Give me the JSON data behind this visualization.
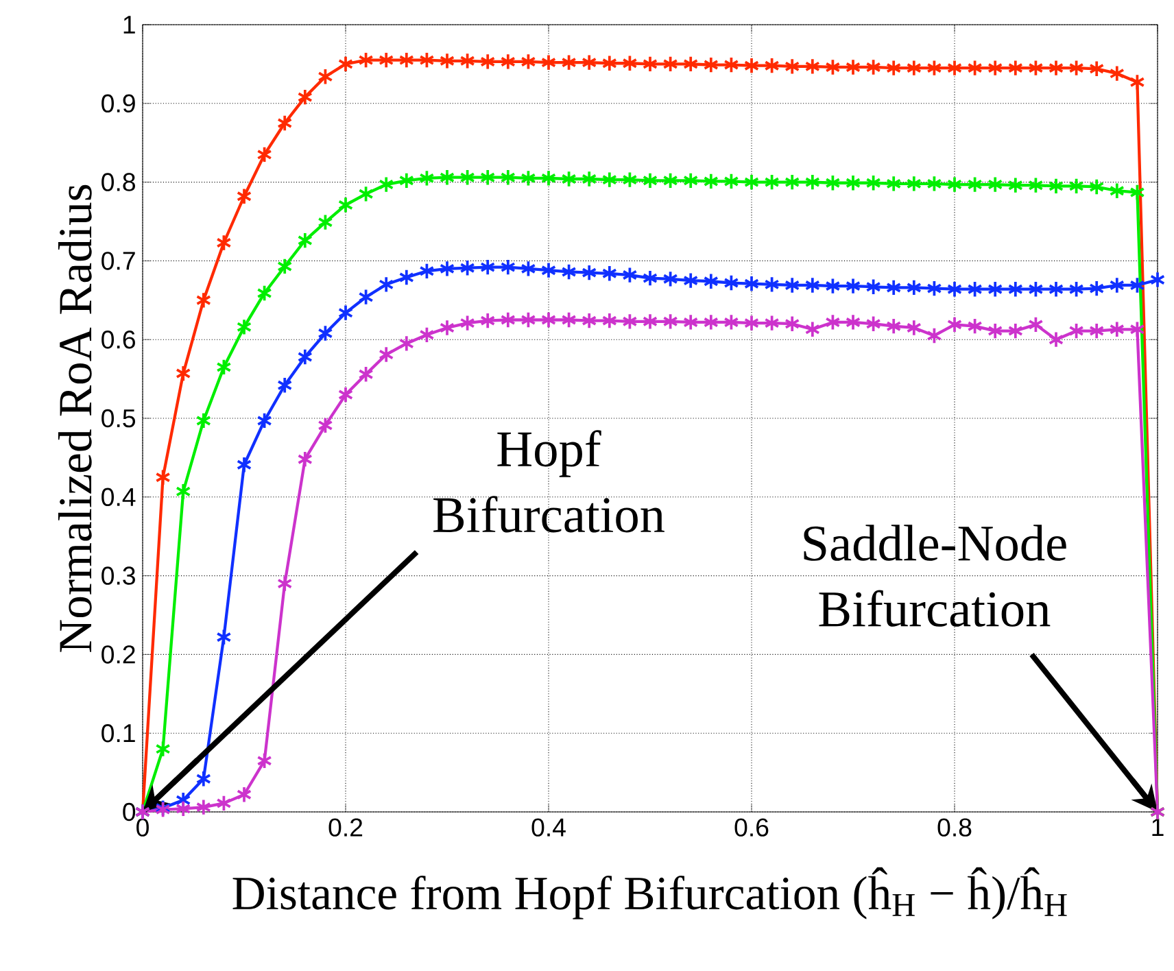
{
  "chart_data": {
    "type": "line",
    "xlabel": "Distance from Hopf Bifurcation (ĥ$_{H}$ − ĥ)/ĥ$_{H}$",
    "ylabel": "Normalized RoA Radius",
    "annotations": [
      {
        "text": "Hopf Bifurcation",
        "x": 0,
        "y": 0
      },
      {
        "text": "Saddle-Node Bifurcation",
        "x": 1,
        "y": 0
      }
    ],
    "x": [
      0,
      0.02,
      0.04,
      0.06,
      0.08,
      0.1,
      0.12,
      0.14,
      0.16,
      0.18,
      0.2,
      0.22,
      0.24,
      0.26,
      0.28,
      0.3,
      0.32,
      0.34,
      0.36,
      0.38,
      0.4,
      0.42,
      0.44,
      0.46,
      0.48,
      0.5,
      0.52,
      0.54,
      0.56,
      0.58,
      0.6,
      0.62,
      0.64,
      0.66,
      0.68,
      0.7,
      0.72,
      0.74,
      0.76,
      0.78,
      0.8,
      0.82,
      0.84,
      0.86,
      0.88,
      0.9,
      0.92,
      0.94,
      0.96,
      0.98,
      1
    ],
    "series": [
      {
        "color": "#ff2a00",
        "values": [
          0,
          0.425,
          0.557,
          0.65,
          0.723,
          0.782,
          0.835,
          0.875,
          0.908,
          0.934,
          0.95,
          0.955,
          0.955,
          0.955,
          0.955,
          0.954,
          0.954,
          0.953,
          0.953,
          0.953,
          0.952,
          0.952,
          0.952,
          0.951,
          0.951,
          0.95,
          0.95,
          0.95,
          0.949,
          0.949,
          0.948,
          0.948,
          0.947,
          0.947,
          0.946,
          0.946,
          0.946,
          0.945,
          0.945,
          0.945,
          0.945,
          0.945,
          0.945,
          0.945,
          0.945,
          0.945,
          0.945,
          0.944,
          0.938,
          0.927,
          0
        ]
      },
      {
        "color": "#00ee00",
        "values": [
          0,
          0.08,
          0.407,
          0.497,
          0.565,
          0.616,
          0.659,
          0.693,
          0.726,
          0.749,
          0.771,
          0.785,
          0.797,
          0.802,
          0.805,
          0.806,
          0.806,
          0.806,
          0.806,
          0.805,
          0.805,
          0.804,
          0.804,
          0.803,
          0.803,
          0.802,
          0.802,
          0.802,
          0.801,
          0.801,
          0.8,
          0.8,
          0.8,
          0.8,
          0.799,
          0.799,
          0.799,
          0.798,
          0.798,
          0.798,
          0.797,
          0.797,
          0.797,
          0.796,
          0.796,
          0.795,
          0.795,
          0.794,
          0.789,
          0.787,
          0
        ]
      },
      {
        "color": "#1030ff",
        "values": [
          0,
          0.005,
          0.015,
          0.042,
          0.222,
          0.441,
          0.497,
          0.542,
          0.578,
          0.608,
          0.634,
          0.654,
          0.67,
          0.679,
          0.687,
          0.69,
          0.691,
          0.692,
          0.692,
          0.69,
          0.688,
          0.686,
          0.685,
          0.684,
          0.682,
          0.678,
          0.677,
          0.675,
          0.674,
          0.672,
          0.671,
          0.67,
          0.669,
          0.669,
          0.668,
          0.668,
          0.667,
          0.666,
          0.666,
          0.665,
          0.664,
          0.664,
          0.664,
          0.664,
          0.664,
          0.664,
          0.664,
          0.665,
          0.669,
          0.669,
          0.676
        ]
      },
      {
        "color": "#cc33cc",
        "values": [
          0,
          0.003,
          0.004,
          0.006,
          0.011,
          0.022,
          0.065,
          0.29,
          0.448,
          0.491,
          0.53,
          0.556,
          0.581,
          0.595,
          0.606,
          0.615,
          0.621,
          0.624,
          0.625,
          0.625,
          0.625,
          0.625,
          0.624,
          0.624,
          0.623,
          0.623,
          0.623,
          0.622,
          0.622,
          0.622,
          0.621,
          0.621,
          0.62,
          0.613,
          0.622,
          0.622,
          0.62,
          0.617,
          0.615,
          0.605,
          0.619,
          0.617,
          0.611,
          0.611,
          0.619,
          0.6,
          0.611,
          0.611,
          0.613,
          0.613,
          0
        ]
      }
    ],
    "xlim": [
      0,
      1
    ],
    "ylim": [
      0,
      1
    ],
    "xticks": [
      0,
      0.2,
      0.4,
      0.6,
      0.8,
      1
    ],
    "yticks": [
      0,
      0.1,
      0.2,
      0.3,
      0.4,
      0.5,
      0.6,
      0.7,
      0.8,
      0.9,
      1
    ],
    "grid": true,
    "marker": "cross",
    "line_style": "solid"
  }
}
